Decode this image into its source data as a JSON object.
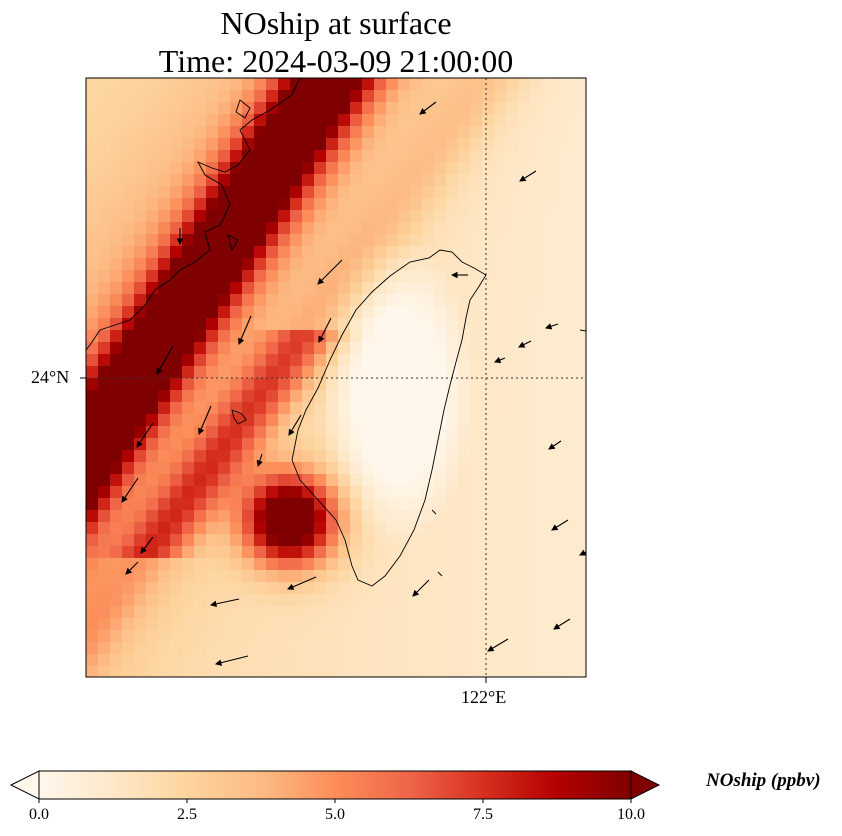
{
  "title_line1": "NOship at surface",
  "title_line2": "Time: 2024-03-09 21:00:00",
  "lat_label": "24°N",
  "lon_label": "122°E",
  "colorbar": {
    "label": "NOship (ppbv)",
    "ticks": [
      "0.0",
      "2.5",
      "5.0",
      "7.5",
      "10.0"
    ],
    "min": 0,
    "max": 10,
    "colormap": "OrRd",
    "extend": "both",
    "stops": [
      "#fff7ec",
      "#fee8c8",
      "#fdd49e",
      "#fdbb84",
      "#fc8d59",
      "#ef6548",
      "#d7301f",
      "#b30000",
      "#7f0000"
    ]
  }
}
